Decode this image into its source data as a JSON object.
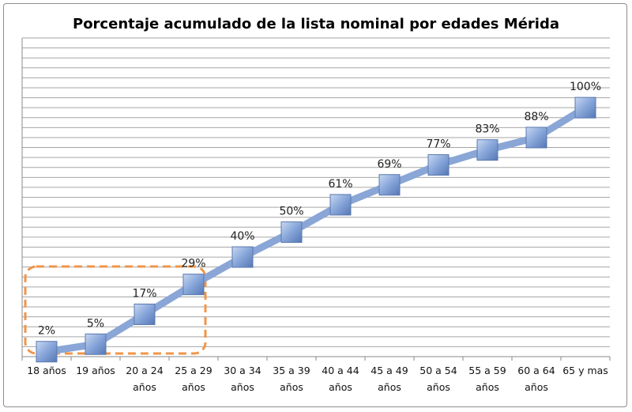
{
  "chart_data": {
    "type": "line",
    "title": "Porcentaje acumulado de la lista nominal por edades Mérida",
    "categories": [
      [
        "18 años"
      ],
      [
        "19 años"
      ],
      [
        "20 a 24",
        "años"
      ],
      [
        "25 a 29",
        "años"
      ],
      [
        "30 a 34",
        "años"
      ],
      [
        "35 a 39",
        "años"
      ],
      [
        "40 a 44",
        "años"
      ],
      [
        "45 a 49",
        "años"
      ],
      [
        "50 a 54",
        "años"
      ],
      [
        "55 a 59",
        "años"
      ],
      [
        "60 a 64",
        "años"
      ],
      [
        "65 y mas"
      ]
    ],
    "values": [
      2,
      5,
      17,
      29,
      40,
      50,
      61,
      69,
      77,
      83,
      88,
      100
    ],
    "data_labels": [
      "2%",
      "5%",
      "17%",
      "29%",
      "40%",
      "50%",
      "61%",
      "69%",
      "77%",
      "83%",
      "88%",
      "100%"
    ],
    "ylim": [
      0,
      128
    ],
    "grid_step": 4,
    "grid": true,
    "y_tick_labels_visible": false,
    "highlight": {
      "type": "dashed-rounded-box",
      "categories": [
        "18 años",
        "19 años",
        "20 a 24 años",
        "25 a 29 años"
      ],
      "color": "#f0954a"
    },
    "colors": {
      "line": "#8aa6d6",
      "marker": "#7f9fd6",
      "grid": "#a6a6a6"
    }
  }
}
